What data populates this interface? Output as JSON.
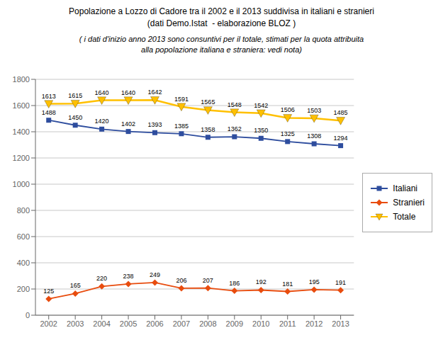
{
  "chart_data": {
    "type": "line",
    "title": "Popolazione a Lozzo di Cadore tra il 2002 e il 2013 suddivisa in italiani e stranieri\n(dati Demo.Istat  - elaborazione BLOZ )",
    "subtitle": "( i dati d'inizio anno 2013 sono consuntivi per il totale, stimati per la quota attribuita\nalla popolazione italiana e straniera: vedi nota)",
    "x": [
      2002,
      2003,
      2004,
      2005,
      2006,
      2007,
      2008,
      2009,
      2010,
      2011,
      2012,
      2013
    ],
    "series": [
      {
        "name": "Italiani",
        "color": "#2e4d9e",
        "marker": "square",
        "values": [
          1488,
          1450,
          1420,
          1402,
          1393,
          1385,
          1358,
          1362,
          1350,
          1325,
          1308,
          1294
        ]
      },
      {
        "name": "Stranieri",
        "color": "#e84c0e",
        "marker": "diamond",
        "values": [
          125,
          165,
          220,
          238,
          249,
          206,
          207,
          186,
          192,
          181,
          195,
          191
        ]
      },
      {
        "name": "Totale",
        "color": "#ffc000",
        "marker": "triangle-down",
        "values": [
          1613,
          1615,
          1640,
          1640,
          1642,
          1591,
          1565,
          1548,
          1542,
          1506,
          1503,
          1485
        ]
      }
    ],
    "xlim": [
      2001.5,
      2013.5
    ],
    "xticks": [
      2002,
      2003,
      2004,
      2005,
      2006,
      2007,
      2008,
      2009,
      2010,
      2011,
      2012,
      2013
    ],
    "ylim": [
      0,
      1800
    ],
    "yticks": [
      0,
      200,
      400,
      600,
      800,
      1000,
      1200,
      1400,
      1600,
      1800
    ],
    "grid": "y",
    "legend": "right",
    "data_labels": true
  }
}
